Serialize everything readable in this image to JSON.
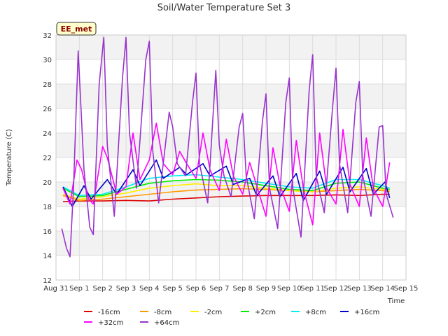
{
  "chart_data": {
    "type": "line",
    "title": "Soil/Water Temperature Set 3",
    "xlabel": "Time",
    "ylabel": "Temperature (C)",
    "badge": "EE_met",
    "ylim": [
      12,
      32
    ],
    "yticks": [
      12,
      14,
      16,
      18,
      20,
      22,
      24,
      26,
      28,
      30,
      32
    ],
    "xlim": [
      0,
      15
    ],
    "xticks": [
      {
        "v": 0,
        "label": "Aug 31"
      },
      {
        "v": 1,
        "label": "Sep 1"
      },
      {
        "v": 2,
        "label": "Sep 2"
      },
      {
        "v": 3,
        "label": "Sep 3"
      },
      {
        "v": 4,
        "label": "Sep 4"
      },
      {
        "v": 5,
        "label": "Sep 5"
      },
      {
        "v": 6,
        "label": "Sep 6"
      },
      {
        "v": 7,
        "label": "Sep 7"
      },
      {
        "v": 8,
        "label": "Sep 8"
      },
      {
        "v": 9,
        "label": "Sep 9"
      },
      {
        "v": 10,
        "label": "Sep 10"
      },
      {
        "v": 11,
        "label": "Sep 11"
      },
      {
        "v": 12,
        "label": "Sep 12"
      },
      {
        "v": 13,
        "label": "Sep 13"
      },
      {
        "v": 14,
        "label": "Sep 14"
      },
      {
        "v": 15,
        "label": "Sep 15"
      }
    ],
    "grid": true,
    "legend_position": "bottom",
    "series": [
      {
        "name": "-16cm",
        "color": "#dd0000",
        "x": [
          0.3,
          1,
          2,
          3,
          4,
          5,
          6,
          7,
          8,
          9,
          10,
          11,
          12,
          13,
          14,
          14.3
        ],
        "y": [
          18.4,
          18.45,
          18.45,
          18.5,
          18.45,
          18.6,
          18.7,
          18.8,
          18.85,
          18.9,
          18.9,
          18.9,
          18.95,
          18.9,
          19.0,
          19.0
        ]
      },
      {
        "name": "-8cm",
        "color": "#ff9900",
        "x": [
          0.3,
          1,
          2,
          3,
          4,
          5,
          6,
          7,
          8,
          9,
          10,
          11,
          12,
          13,
          14,
          14.3
        ],
        "y": [
          18.9,
          18.5,
          18.6,
          18.8,
          19.0,
          19.2,
          19.35,
          19.4,
          19.45,
          19.4,
          19.3,
          19.2,
          19.3,
          19.4,
          19.3,
          19.2
        ]
      },
      {
        "name": "-2cm",
        "color": "#ffee00",
        "x": [
          0.3,
          1,
          2,
          3,
          4,
          5,
          6,
          7,
          8,
          9,
          10,
          11,
          12,
          13,
          14,
          14.3
        ],
        "y": [
          19.0,
          18.6,
          18.8,
          19.1,
          19.5,
          19.7,
          19.85,
          19.7,
          19.7,
          19.5,
          19.3,
          19.2,
          19.5,
          19.6,
          19.4,
          19.3
        ]
      },
      {
        "name": "+2cm",
        "color": "#00ee00",
        "x": [
          0.3,
          1,
          2,
          3,
          4,
          5,
          6,
          7,
          8,
          9,
          10,
          11,
          12,
          13,
          14,
          14.3
        ],
        "y": [
          19.5,
          18.8,
          18.9,
          19.4,
          19.9,
          20.1,
          20.2,
          20.15,
          20.0,
          19.7,
          19.4,
          19.3,
          19.9,
          20.0,
          19.5,
          19.4
        ]
      },
      {
        "name": "+8cm",
        "color": "#00eeee",
        "x": [
          0.3,
          1,
          2,
          3,
          4,
          5,
          6,
          7,
          8,
          9,
          10,
          11,
          12,
          13,
          14,
          14.3
        ],
        "y": [
          19.6,
          18.9,
          19.0,
          19.6,
          20.3,
          20.5,
          20.6,
          20.4,
          20.2,
          19.9,
          19.6,
          19.5,
          20.2,
          20.2,
          19.7,
          19.5
        ]
      },
      {
        "name": "+16cm",
        "color": "#0000cc",
        "x": [
          0.3,
          0.7,
          1.2,
          1.5,
          2.2,
          2.6,
          3.3,
          3.6,
          4.3,
          4.6,
          5.3,
          5.6,
          6.3,
          6.6,
          7.3,
          7.6,
          8.3,
          8.6,
          9.3,
          9.6,
          10.3,
          10.6,
          11.3,
          11.6,
          12.3,
          12.6,
          13.3,
          13.6,
          14.1,
          14.3
        ],
        "y": [
          19.6,
          18.0,
          19.7,
          18.6,
          20.2,
          19.0,
          21.0,
          19.7,
          21.8,
          20.3,
          21.2,
          20.6,
          21.5,
          20.5,
          21.3,
          19.8,
          20.3,
          18.9,
          20.5,
          18.8,
          20.7,
          18.5,
          20.9,
          19.0,
          21.2,
          19.2,
          21.1,
          19.0,
          20.0,
          18.7
        ]
      },
      {
        "name": "+32cm",
        "color": "#ff00ff",
        "x": [
          0.3,
          0.6,
          0.9,
          1.1,
          1.4,
          1.6,
          2.0,
          2.2,
          2.6,
          3.0,
          3.3,
          3.6,
          4.0,
          4.3,
          4.6,
          5.0,
          5.3,
          5.6,
          6.0,
          6.3,
          6.6,
          7.0,
          7.3,
          7.6,
          8.0,
          8.3,
          8.6,
          9.0,
          9.3,
          9.6,
          10.0,
          10.3,
          10.6,
          11.0,
          11.3,
          11.6,
          12.0,
          12.3,
          12.6,
          13.0,
          13.3,
          13.6,
          14.0,
          14.3
        ],
        "y": [
          19.5,
          18.2,
          21.8,
          21.0,
          18.6,
          18.2,
          22.9,
          22.0,
          19.0,
          19.6,
          24.0,
          20.2,
          21.8,
          24.8,
          21.5,
          20.6,
          22.5,
          21.5,
          20.3,
          24.0,
          21.0,
          19.3,
          23.5,
          20.5,
          19.0,
          21.6,
          19.7,
          17.2,
          22.8,
          19.7,
          17.6,
          23.4,
          19.5,
          16.5,
          24.0,
          19.5,
          18.2,
          24.3,
          19.8,
          18.0,
          23.6,
          19.5,
          18.0,
          21.6
        ]
      },
      {
        "name": "+64cm",
        "color": "#9933cc",
        "x": [
          0.25,
          0.45,
          0.6,
          0.75,
          0.95,
          1.2,
          1.45,
          1.6,
          1.85,
          2.05,
          2.2,
          2.5,
          2.85,
          3.0,
          3.15,
          3.45,
          3.85,
          4.0,
          4.15,
          4.4,
          4.85,
          5.0,
          5.2,
          5.55,
          5.85,
          6.0,
          6.15,
          6.5,
          6.85,
          7.0,
          7.2,
          7.5,
          7.85,
          8.0,
          8.15,
          8.5,
          8.85,
          9.0,
          9.15,
          9.5,
          9.85,
          10.0,
          10.15,
          10.5,
          10.85,
          11.0,
          11.15,
          11.5,
          11.85,
          12.0,
          12.15,
          12.5,
          12.85,
          13.0,
          13.15,
          13.5,
          13.85,
          14.0,
          14.15,
          14.45
        ],
        "y": [
          16.2,
          14.6,
          13.9,
          19.5,
          30.7,
          21.0,
          16.3,
          15.7,
          28.0,
          31.8,
          23.0,
          17.2,
          28.5,
          31.8,
          24.0,
          19.5,
          30.0,
          31.5,
          22.5,
          18.3,
          25.7,
          24.5,
          21.5,
          20.5,
          26.5,
          28.9,
          21.5,
          18.3,
          29.1,
          23.0,
          20.5,
          18.8,
          24.5,
          25.6,
          20.5,
          17.0,
          25.0,
          27.2,
          19.5,
          16.2,
          26.5,
          28.5,
          19.5,
          15.5,
          27.5,
          30.4,
          20.5,
          17.5,
          26.0,
          29.3,
          21.5,
          17.5,
          26.5,
          28.2,
          20.5,
          17.2,
          24.5,
          24.6,
          19.0,
          17.1
        ]
      }
    ]
  }
}
